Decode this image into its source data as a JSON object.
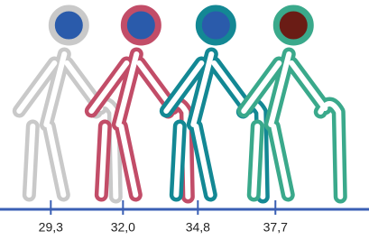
{
  "chart_data": {
    "type": "pictogram",
    "values": [
      29.3,
      32.0,
      34.8,
      37.7
    ],
    "value_labels": [
      "29,3",
      "32,0",
      "34,8",
      "37,7"
    ],
    "colors": [
      "#c9c9c9",
      "#c24d68",
      "#138894",
      "#3aa98b"
    ],
    "head_colors": [
      "#2a5bab",
      "#2a5bab",
      "#2a5bab",
      "#6a1c15"
    ],
    "axis_color": "#3a5fb4",
    "xlim": [
      27.4,
      41.2
    ]
  }
}
